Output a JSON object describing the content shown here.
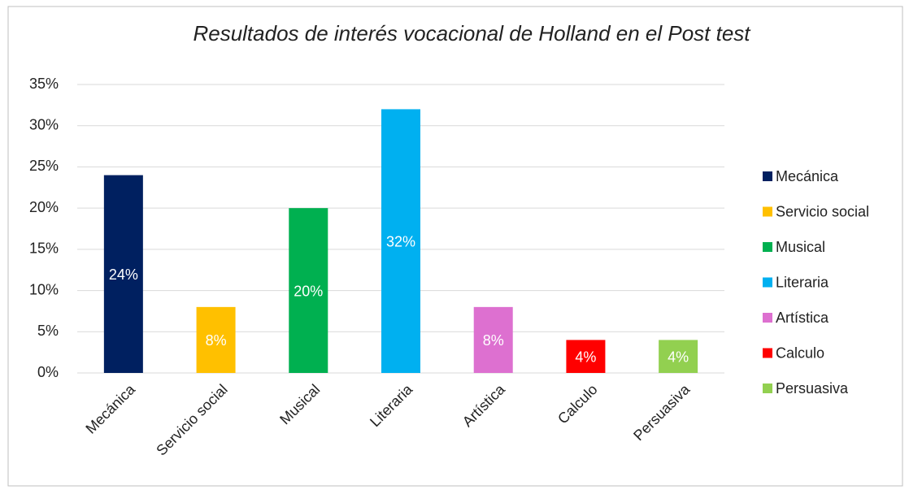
{
  "chart_data": {
    "type": "bar",
    "title": "Resultados de interés vocacional de Holland en el Post test",
    "categories": [
      "Mecánica",
      "Servicio social",
      "Musical",
      "Literaria",
      "Artística",
      "Calculo",
      "Persuasiva"
    ],
    "values": [
      24,
      8,
      20,
      32,
      8,
      4,
      4
    ],
    "value_labels": [
      "24%",
      "8%",
      "20%",
      "32%",
      "8%",
      "4%",
      "4%"
    ],
    "colors": [
      "#002060",
      "#ffc000",
      "#00b050",
      "#00b0f0",
      "#dd70d0",
      "#ff0000",
      "#92d050"
    ],
    "ylim": [
      0,
      35
    ],
    "yticks": [
      {
        "value": 0,
        "label": "0%"
      },
      {
        "value": 5,
        "label": "5%"
      },
      {
        "value": 10,
        "label": "10%"
      },
      {
        "value": 15,
        "label": "15%"
      },
      {
        "value": 20,
        "label": "20%"
      },
      {
        "value": 25,
        "label": "25%"
      },
      {
        "value": 30,
        "label": "30%"
      },
      {
        "value": 35,
        "label": "35%"
      }
    ],
    "grid": true,
    "legend": "right"
  }
}
